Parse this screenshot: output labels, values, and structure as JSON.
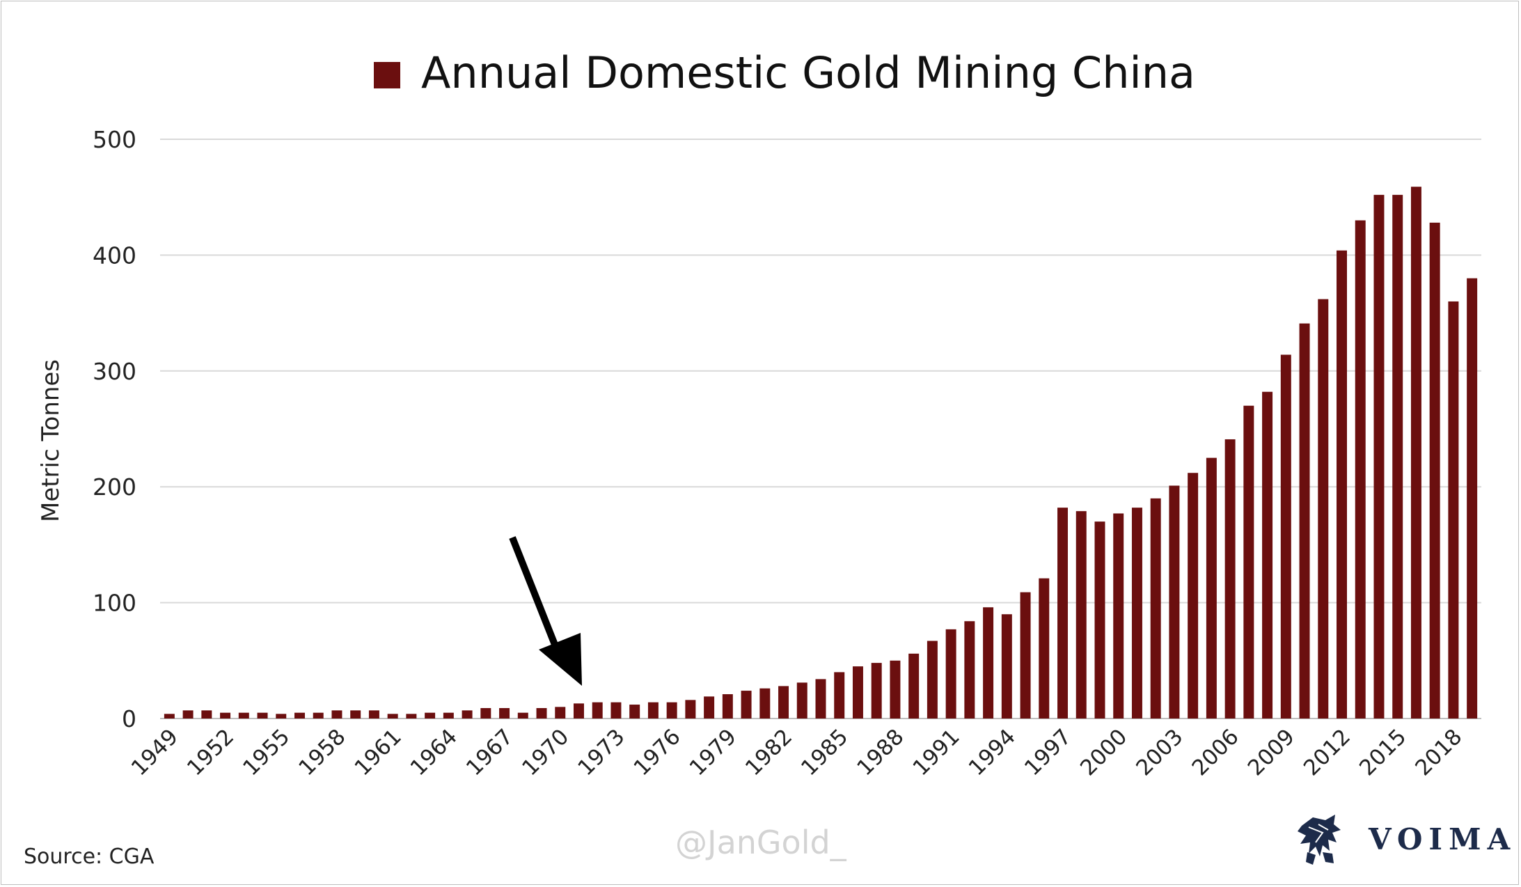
{
  "chart_data": {
    "type": "bar",
    "title": "Annual Domestic Gold Mining China",
    "ylabel": "Metric Tonnes",
    "xlabel": "",
    "ylim": [
      0,
      500
    ],
    "yticks": [
      "0",
      "100",
      "200",
      "300",
      "400",
      "500"
    ],
    "grid": true,
    "legend": "top-center",
    "bar_color": "#6b0f0f",
    "annotation": "arrow pointing to 1971",
    "categories": [
      "1949",
      "1950",
      "1951",
      "1952",
      "1953",
      "1954",
      "1955",
      "1956",
      "1957",
      "1958",
      "1959",
      "1960",
      "1961",
      "1962",
      "1963",
      "1964",
      "1965",
      "1966",
      "1967",
      "1968",
      "1969",
      "1970",
      "1971",
      "1972",
      "1973",
      "1974",
      "1975",
      "1976",
      "1977",
      "1978",
      "1979",
      "1980",
      "1981",
      "1982",
      "1983",
      "1984",
      "1985",
      "1986",
      "1987",
      "1988",
      "1989",
      "1990",
      "1991",
      "1992",
      "1993",
      "1994",
      "1995",
      "1996",
      "1997",
      "1998",
      "1999",
      "2000",
      "2001",
      "2002",
      "2003",
      "2004",
      "2005",
      "2006",
      "2007",
      "2008",
      "2009",
      "2010",
      "2011",
      "2012",
      "2013",
      "2014",
      "2015",
      "2016",
      "2017",
      "2018",
      "2019"
    ],
    "tick_labels": [
      "1949",
      "1952",
      "1955",
      "1958",
      "1961",
      "1964",
      "1967",
      "1970",
      "1973",
      "1976",
      "1979",
      "1982",
      "1985",
      "1988",
      "1991",
      "1994",
      "1997",
      "2000",
      "2003",
      "2006",
      "2009",
      "2012",
      "2015",
      "2018"
    ],
    "series": [
      {
        "name": "Annual Domestic Gold Mining China",
        "values": [
          4,
          7,
          7,
          5,
          5,
          5,
          4,
          5,
          5,
          7,
          7,
          7,
          4,
          4,
          5,
          5,
          7,
          9,
          9,
          5,
          9,
          10,
          13,
          14,
          14,
          12,
          14,
          14,
          16,
          19,
          21,
          24,
          26,
          28,
          31,
          34,
          40,
          45,
          48,
          50,
          56,
          67,
          77,
          84,
          96,
          90,
          109,
          121,
          182,
          179,
          170,
          177,
          182,
          190,
          201,
          212,
          225,
          241,
          270,
          282,
          314,
          341,
          362,
          404,
          430,
          452,
          452,
          459,
          428,
          360,
          380
        ]
      }
    ]
  },
  "footer": {
    "source": "Source: CGA",
    "watermark": "@JanGold_",
    "brand": "VOIMA"
  },
  "colors": {
    "bar": "#6b0f0f",
    "grid": "#d9d9d9",
    "watermark": "#d3d3d3",
    "brand": "#1d2b4a"
  },
  "icons": {
    "brand_logo": "lion-crest-icon"
  }
}
